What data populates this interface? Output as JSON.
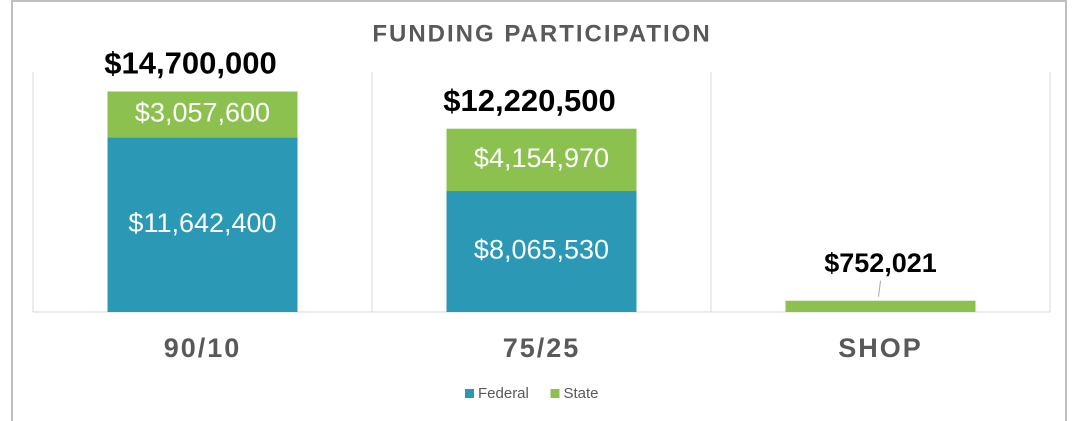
{
  "chart_data": {
    "type": "stacked-bar",
    "title": "FUNDING PARTICIPATION",
    "categories": [
      "90/10",
      "75/25",
      "SHOP"
    ],
    "series": [
      {
        "name": "Federal",
        "color": "#2b98b6",
        "values": [
          11642400,
          8065530,
          null
        ],
        "value_labels": [
          "$11,642,400",
          "$8,065,530",
          null
        ]
      },
      {
        "name": "State",
        "color": "#8dc14f",
        "values": [
          3057600,
          4154970,
          752021
        ],
        "value_labels": [
          "$3,057,600",
          "$4,154,970",
          "$752,021"
        ]
      }
    ],
    "totals": [
      14700000,
      12220500,
      null
    ],
    "total_labels": [
      "$14,700,000",
      "$12,220,500",
      null
    ],
    "ylim": [
      0,
      16000000
    ],
    "legend": "bottom"
  }
}
